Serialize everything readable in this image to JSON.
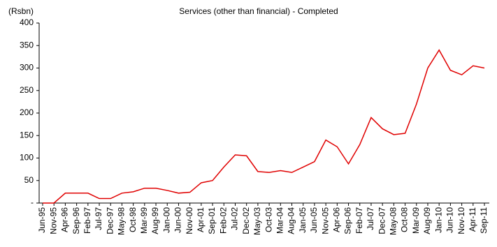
{
  "chart_data": {
    "type": "line",
    "title": "Services (other than financial) - Completed",
    "y_label": "(Rsbn)",
    "categories": [
      "Jun-95",
      "Nov-95",
      "Apr-96",
      "Sep-96",
      "Feb-97",
      "Jul-97",
      "Dec-97",
      "May-98",
      "Oct-98",
      "Mar-99",
      "Aug-99",
      "Jan-00",
      "Jun-00",
      "Nov-00",
      "Apr-01",
      "Sep-01",
      "Feb-02",
      "Jul-02",
      "Dec-02",
      "May-03",
      "Oct-03",
      "Mar-04",
      "Aug-04",
      "Jan-05",
      "Jun-05",
      "Nov-05",
      "Apr-06",
      "Sep-06",
      "Feb-07",
      "Jul-07",
      "Dec-07",
      "May-08",
      "Oct-08",
      "Mar-09",
      "Aug-09",
      "Jan-10",
      "Jun-10",
      "Nov-10",
      "Apr-11",
      "Sep-11"
    ],
    "values": [
      0,
      0,
      22,
      22,
      22,
      10,
      10,
      22,
      25,
      33,
      33,
      28,
      22,
      24,
      45,
      50,
      80,
      107,
      105,
      70,
      68,
      72,
      68,
      80,
      92,
      140,
      125,
      87,
      130,
      190,
      165,
      152,
      155,
      220,
      300,
      340,
      295,
      285,
      305,
      300
    ],
    "color": "#e00000",
    "ylim": [
      0,
      400
    ],
    "yticks": [
      {
        "value": 0,
        "label": "-"
      },
      50,
      100,
      150,
      200,
      250,
      300,
      350,
      400
    ],
    "grid": false
  }
}
